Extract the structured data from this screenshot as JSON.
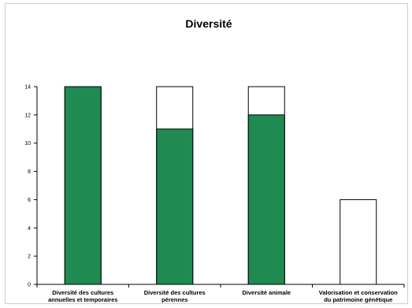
{
  "chart_data": {
    "type": "bar",
    "title": "Diversité",
    "xlabel": "",
    "ylabel": "",
    "ylim": [
      0,
      14
    ],
    "yticks": [
      0,
      2,
      4,
      6,
      8,
      10,
      12,
      14
    ],
    "grid": false,
    "legend": "none",
    "categories": [
      [
        "Diversité des cultures",
        "annuelles et temporaires"
      ],
      [
        "Diversité des cultures",
        "pérennes"
      ],
      [
        "Diversité animale"
      ],
      [
        "Valorisation et conservation",
        "du patrimoine génétique"
      ]
    ],
    "series": [
      {
        "values": [
          14,
          11,
          12,
          0
        ],
        "color": "#1f8a52"
      },
      {
        "values": [
          14,
          14,
          14,
          6
        ],
        "color": "#ffffff"
      }
    ]
  }
}
